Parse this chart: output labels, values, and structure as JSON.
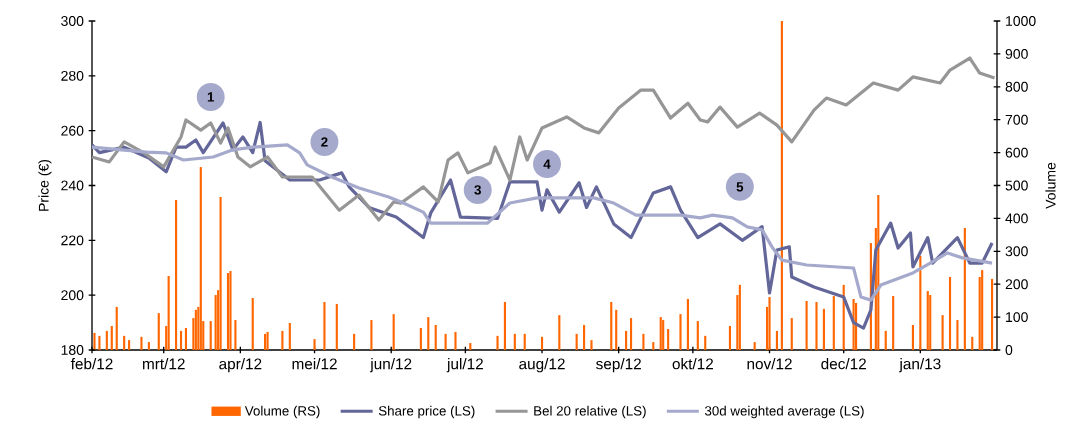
{
  "chart_data": {
    "type": "line",
    "xlabel": null,
    "ylabel": "Price (€)",
    "y2label": "Volume",
    "xlim": [
      "2012-02-01",
      "2013-02-01"
    ],
    "xticks": [
      {
        "value": "2012-02-01",
        "label": "feb/12"
      },
      {
        "value": "2012-03-01",
        "label": "mrt/12"
      },
      {
        "value": "2012-04-01",
        "label": "apr/12"
      },
      {
        "value": "2012-05-01",
        "label": "mei/12"
      },
      {
        "value": "2012-06-01",
        "label": "jun/12"
      },
      {
        "value": "2012-07-01",
        "label": "jul/12"
      },
      {
        "value": "2012-08-01",
        "label": "aug/12"
      },
      {
        "value": "2012-09-01",
        "label": "sep/12"
      },
      {
        "value": "2012-10-01",
        "label": "okt/12"
      },
      {
        "value": "2012-11-01",
        "label": "nov/12"
      },
      {
        "value": "2012-12-01",
        "label": "dec/12"
      },
      {
        "value": "2013-01-01",
        "label": "jan/13"
      }
    ],
    "ylim": [
      180,
      300
    ],
    "yticks": [
      180,
      200,
      220,
      240,
      260,
      280,
      300
    ],
    "y2lim": [
      0,
      1000
    ],
    "y2ticks": [
      0,
      100,
      200,
      300,
      400,
      500,
      600,
      700,
      800,
      900,
      1000
    ],
    "legend": "bottom",
    "series": [
      {
        "name": "Volume (RS)",
        "type": "bar",
        "axis": "y2",
        "color": "#ff6600",
        "x": [
          "2012-02-02",
          "2012-02-04",
          "2012-02-07",
          "2012-02-09",
          "2012-02-11",
          "2012-02-14",
          "2012-02-16",
          "2012-02-21",
          "2012-02-24",
          "2012-02-28",
          "2012-03-02",
          "2012-03-03",
          "2012-03-06",
          "2012-03-08",
          "2012-03-10",
          "2012-03-13",
          "2012-03-14",
          "2012-03-15",
          "2012-03-16",
          "2012-03-17",
          "2012-03-20",
          "2012-03-22",
          "2012-03-23",
          "2012-03-24",
          "2012-03-27",
          "2012-03-28",
          "2012-03-30",
          "2012-04-06",
          "2012-04-11",
          "2012-04-12",
          "2012-04-18",
          "2012-04-21",
          "2012-05-01",
          "2012-05-05",
          "2012-05-10",
          "2012-05-17",
          "2012-05-24",
          "2012-06-02",
          "2012-06-13",
          "2012-06-16",
          "2012-06-19",
          "2012-06-23",
          "2012-06-27",
          "2012-07-03",
          "2012-07-14",
          "2012-07-17",
          "2012-07-21",
          "2012-07-25",
          "2012-08-01",
          "2012-08-08",
          "2012-08-15",
          "2012-08-18",
          "2012-08-21",
          "2012-08-29",
          "2012-08-31",
          "2012-09-04",
          "2012-09-06",
          "2012-09-11",
          "2012-09-15",
          "2012-09-18",
          "2012-09-19",
          "2012-09-21",
          "2012-09-26",
          "2012-09-29",
          "2012-10-03",
          "2012-10-06",
          "2012-10-16",
          "2012-10-19",
          "2012-10-20",
          "2012-10-26",
          "2012-10-31",
          "2012-11-01",
          "2012-11-04",
          "2012-11-06",
          "2012-11-10",
          "2012-11-16",
          "2012-11-20",
          "2012-11-23",
          "2012-11-27",
          "2012-12-01",
          "2012-12-05",
          "2012-12-06",
          "2012-12-12",
          "2012-12-14",
          "2012-12-15",
          "2012-12-18",
          "2012-12-21",
          "2012-12-29",
          "2013-01-01",
          "2013-01-04",
          "2013-01-05",
          "2013-01-10",
          "2013-01-13",
          "2013-01-16",
          "2013-01-19",
          "2013-01-22",
          "2013-01-25",
          "2013-01-26",
          "2013-01-30"
        ],
        "values": [
          52,
          43,
          58,
          73,
          131,
          43,
          30,
          40,
          24,
          112,
          73,
          225,
          456,
          58,
          67,
          97,
          122,
          131,
          556,
          88,
          88,
          167,
          182,
          465,
          234,
          240,
          91,
          158,
          49,
          55,
          58,
          82,
          33,
          146,
          140,
          49,
          91,
          109,
          67,
          100,
          76,
          49,
          55,
          21,
          43,
          146,
          49,
          49,
          40,
          106,
          49,
          76,
          30,
          146,
          122,
          58,
          97,
          49,
          24,
          100,
          91,
          64,
          109,
          155,
          88,
          43,
          73,
          167,
          198,
          24,
          131,
          161,
          58,
          1000,
          97,
          149,
          146,
          125,
          164,
          198,
          155,
          143,
          325,
          371,
          471,
          58,
          164,
          76,
          286,
          179,
          167,
          106,
          222,
          91,
          371,
          40,
          222,
          243,
          216
        ]
      },
      {
        "name": "Share price (LS)",
        "axis": "y",
        "color": "#636699",
        "x": [
          "2012-02-01",
          "2012-02-04",
          "2012-02-14",
          "2012-02-24",
          "2012-03-02",
          "2012-03-06",
          "2012-03-10",
          "2012-03-14",
          "2012-03-17",
          "2012-03-25",
          "2012-03-29",
          "2012-04-02",
          "2012-04-06",
          "2012-04-09",
          "2012-04-11",
          "2012-04-21",
          "2012-05-03",
          "2012-05-12",
          "2012-05-15",
          "2012-05-23",
          "2012-06-03",
          "2012-06-14",
          "2012-06-17",
          "2012-06-25",
          "2012-06-29",
          "2012-07-14",
          "2012-07-19",
          "2012-07-30",
          "2012-08-01",
          "2012-08-03",
          "2012-08-08",
          "2012-08-16",
          "2012-08-19",
          "2012-08-23",
          "2012-08-30",
          "2012-09-06",
          "2012-09-15",
          "2012-09-22",
          "2012-09-26",
          "2012-10-03",
          "2012-10-12",
          "2012-10-21",
          "2012-10-29",
          "2012-11-01",
          "2012-11-04",
          "2012-11-09",
          "2012-11-10",
          "2012-11-19",
          "2012-12-01",
          "2012-12-05",
          "2012-12-09",
          "2012-12-12",
          "2012-12-14",
          "2012-12-20",
          "2012-12-23",
          "2012-12-28",
          "2012-12-29",
          "2013-01-04",
          "2013-01-06",
          "2013-01-16",
          "2013-01-21",
          "2013-01-26",
          "2013-01-30"
        ],
        "values": [
          254.8,
          252,
          254,
          250,
          245,
          254,
          254,
          256.6,
          252,
          262.8,
          253,
          257.7,
          252,
          263,
          249,
          242,
          242,
          244.6,
          239.5,
          232,
          228.5,
          221,
          230,
          242,
          228.5,
          228,
          241.3,
          241.3,
          231,
          238.4,
          230.3,
          241,
          232,
          239.5,
          226,
          221,
          237.3,
          239.5,
          231,
          221,
          226,
          220,
          225,
          200.8,
          216.5,
          217.6,
          206.6,
          203,
          199.3,
          190,
          188,
          194.6,
          216.5,
          226.3,
          217.2,
          222.7,
          210.3,
          221,
          211.7,
          221,
          211.7,
          211.7,
          219
        ]
      },
      {
        "name": "Bel 20 relative (LS)",
        "axis": "y",
        "color": "#969696",
        "x": [
          "2012-02-01",
          "2012-02-08",
          "2012-02-14",
          "2012-02-22",
          "2012-03-01",
          "2012-03-08",
          "2012-03-10",
          "2012-03-16",
          "2012-03-20",
          "2012-03-24",
          "2012-03-27",
          "2012-03-31",
          "2012-04-05",
          "2012-04-12",
          "2012-04-18",
          "2012-04-30",
          "2012-05-11",
          "2012-05-19",
          "2012-05-27",
          "2012-06-02",
          "2012-06-05",
          "2012-06-14",
          "2012-06-20",
          "2012-06-24",
          "2012-06-28",
          "2012-07-02",
          "2012-07-11",
          "2012-07-13",
          "2012-07-19",
          "2012-07-23",
          "2012-07-26",
          "2012-08-01",
          "2012-08-11",
          "2012-08-18",
          "2012-08-24",
          "2012-09-01",
          "2012-09-10",
          "2012-09-15",
          "2012-09-22",
          "2012-09-29",
          "2012-10-04",
          "2012-10-07",
          "2012-10-12",
          "2012-10-19",
          "2012-10-28",
          "2012-11-04",
          "2012-11-10",
          "2012-11-19",
          "2012-11-24",
          "2012-12-02",
          "2012-12-13",
          "2012-12-23",
          "2012-12-29",
          "2013-01-09",
          "2013-01-13",
          "2013-01-21",
          "2013-01-25",
          "2013-01-31"
        ],
        "values": [
          250.4,
          248.6,
          255.9,
          251.9,
          246.8,
          257.7,
          263.9,
          260.2,
          262.8,
          255.5,
          261,
          250.4,
          246.8,
          250.4,
          243.1,
          243.1,
          231,
          236.5,
          227.4,
          234,
          233.6,
          239.5,
          234,
          249.3,
          251.9,
          244.6,
          248.2,
          254,
          242,
          257.7,
          249.3,
          261,
          265,
          261,
          259.2,
          268.3,
          274.8,
          274.8,
          264.6,
          270,
          263.9,
          263.2,
          268.6,
          261.3,
          266.4,
          262,
          255.9,
          267.5,
          271.9,
          269.4,
          277.4,
          274.8,
          279.6,
          277.4,
          282.1,
          286.5,
          281,
          279.2
        ]
      },
      {
        "name": "30d weighted average (LS)",
        "axis": "y",
        "color": "#a5a9cc",
        "x": [
          "2012-02-01",
          "2012-02-23",
          "2012-03-02",
          "2012-03-09",
          "2012-03-21",
          "2012-03-29",
          "2012-04-06",
          "2012-04-20",
          "2012-04-25",
          "2012-04-28",
          "2012-05-08",
          "2012-05-19",
          "2012-05-31",
          "2012-06-05",
          "2012-06-14",
          "2012-06-17",
          "2012-07-10",
          "2012-07-19",
          "2012-07-30",
          "2012-08-22",
          "2012-08-30",
          "2012-09-08",
          "2012-09-26",
          "2012-10-04",
          "2012-10-09",
          "2012-10-17",
          "2012-10-23",
          "2012-10-29",
          "2012-11-02",
          "2012-11-06",
          "2012-11-16",
          "2012-12-05",
          "2012-12-08",
          "2012-12-12",
          "2012-12-16",
          "2012-12-29",
          "2013-01-05",
          "2013-01-12",
          "2013-01-18",
          "2013-01-30"
        ],
        "values": [
          254,
          252.2,
          251.9,
          249.3,
          250.4,
          253,
          254,
          254.8,
          251.9,
          247.5,
          243.1,
          239.1,
          235.8,
          234,
          230.3,
          226.3,
          226.3,
          233.6,
          235.5,
          235.5,
          233.6,
          229.2,
          229.2,
          228.2,
          229.2,
          228.2,
          224.9,
          223.8,
          217.6,
          212.8,
          211,
          209.9,
          199.3,
          198.2,
          203.7,
          208.1,
          211.7,
          215.4,
          213.6,
          211.7
        ]
      }
    ],
    "annotations": [
      {
        "text": "1",
        "x": "2012-03-20",
        "y": 272.3
      },
      {
        "text": "2",
        "x": "2012-05-05",
        "y": 255.9
      },
      {
        "text": "3",
        "x": "2012-07-06",
        "y": 238.4
      },
      {
        "text": "4",
        "x": "2012-08-03",
        "y": 247.8
      },
      {
        "text": "5",
        "x": "2012-10-20",
        "y": 239.5
      }
    ]
  }
}
